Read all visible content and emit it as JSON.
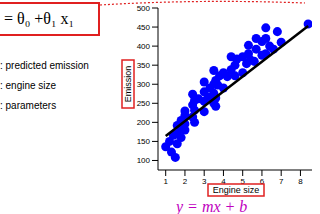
{
  "chart_data": {
    "type": "scatter",
    "xlabel": "Engine size",
    "ylabel": "Emission",
    "xlim": [
      0.6,
      8.6
    ],
    "xticks": [
      1,
      2,
      3,
      4,
      5,
      6,
      7,
      8
    ],
    "ylim": [
      75,
      500
    ],
    "yticks": [
      100,
      150,
      200,
      250,
      300,
      350,
      400,
      450,
      500
    ],
    "grid": false,
    "series": [
      {
        "type": "scatter",
        "color": "#0000ff",
        "marker": "circle",
        "x": [
          1.0,
          1.2,
          1.4,
          1.5,
          1.6,
          1.6,
          1.8,
          1.8,
          2.0,
          2.0,
          2.0,
          2.4,
          2.4,
          2.5,
          2.5,
          2.7,
          3.0,
          3.0,
          3.0,
          3.2,
          3.3,
          3.5,
          3.5,
          3.5,
          3.6,
          3.6,
          3.7,
          3.8,
          4.0,
          4.0,
          4.2,
          4.4,
          4.6,
          4.6,
          4.7,
          5.0,
          5.0,
          5.2,
          5.3,
          5.3,
          5.4,
          5.6,
          5.7,
          6.0,
          6.0,
          6.2,
          6.2,
          6.4,
          6.6,
          6.8,
          7.0,
          8.4,
          1.3,
          1.8,
          2.0,
          2.5,
          3.5,
          3.6,
          4.4,
          5.7,
          6.2,
          2.4,
          3.0,
          1.6
        ],
        "values": [
          136,
          150,
          166,
          108,
          170,
          192,
          184,
          205,
          196,
          218,
          230,
          214,
          246,
          232,
          258,
          262,
          255,
          280,
          306,
          266,
          290,
          250,
          276,
          300,
          264,
          310,
          298,
          322,
          290,
          330,
          320,
          338,
          322,
          350,
          366,
          330,
          372,
          354,
          380,
          402,
          364,
          360,
          392,
          376,
          412,
          380,
          420,
          400,
          392,
          438,
          410,
          458,
          122,
          160,
          180,
          200,
          336,
          242,
          372,
          420,
          448,
          274,
          228,
          144
        ]
      },
      {
        "type": "line",
        "color": "#000000",
        "x": [
          1,
          8.4
        ],
        "values": [
          164,
          453
        ]
      }
    ]
  },
  "slide": {
    "formula": "= θ₀ +θ₁ x₁",
    "lines": [
      ": predicted emission",
      ": engine size",
      ": parameters"
    ],
    "handwriting": "y = mx + b"
  }
}
